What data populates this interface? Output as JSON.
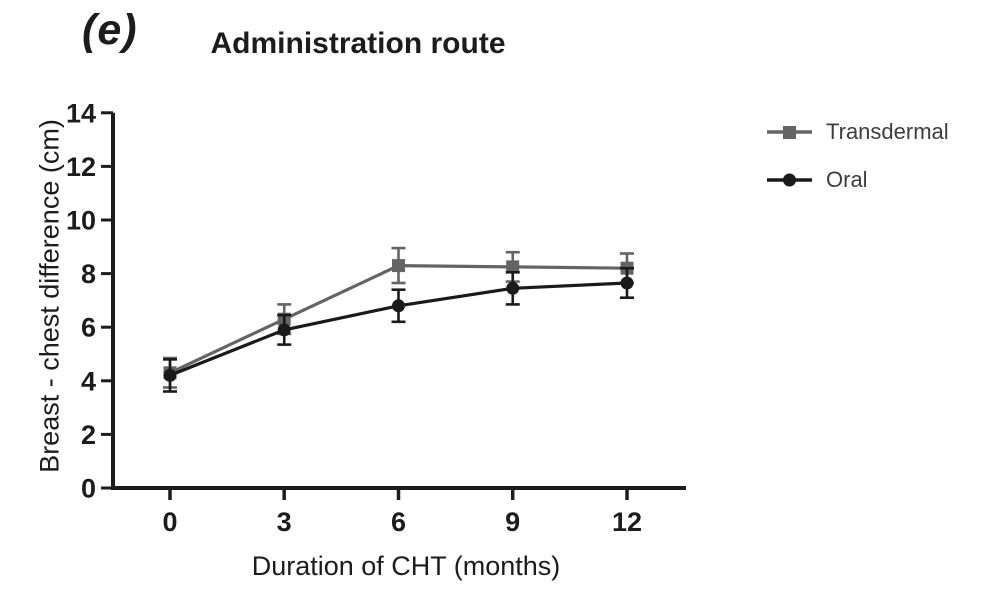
{
  "panel": {
    "label": "(e)"
  },
  "chart_data": {
    "type": "line",
    "title": "Administration route",
    "xlabel": "Duration of CHT (months)",
    "ylabel": "Breast - chest difference (cm)",
    "x": [
      0,
      3,
      6,
      9,
      12
    ],
    "xticks": [
      0,
      3,
      6,
      9,
      12
    ],
    "yticks": [
      0,
      2,
      4,
      6,
      8,
      10,
      12,
      14
    ],
    "xlim": [
      0,
      12
    ],
    "ylim": [
      0,
      14
    ],
    "grid": false,
    "error_bars": true,
    "legend_position": "right-top",
    "axis_color": "#1c1c1c",
    "series": [
      {
        "name": "Transdermal",
        "marker": "square",
        "color": "#646464",
        "values": [
          4.3,
          6.3,
          8.3,
          8.25,
          8.2
        ],
        "errors": [
          0.55,
          0.55,
          0.65,
          0.55,
          0.55
        ]
      },
      {
        "name": "Oral",
        "marker": "circle",
        "color": "#1a1a1a",
        "values": [
          4.2,
          5.9,
          6.8,
          7.45,
          7.65
        ],
        "errors": [
          0.6,
          0.55,
          0.6,
          0.6,
          0.55
        ]
      }
    ]
  }
}
